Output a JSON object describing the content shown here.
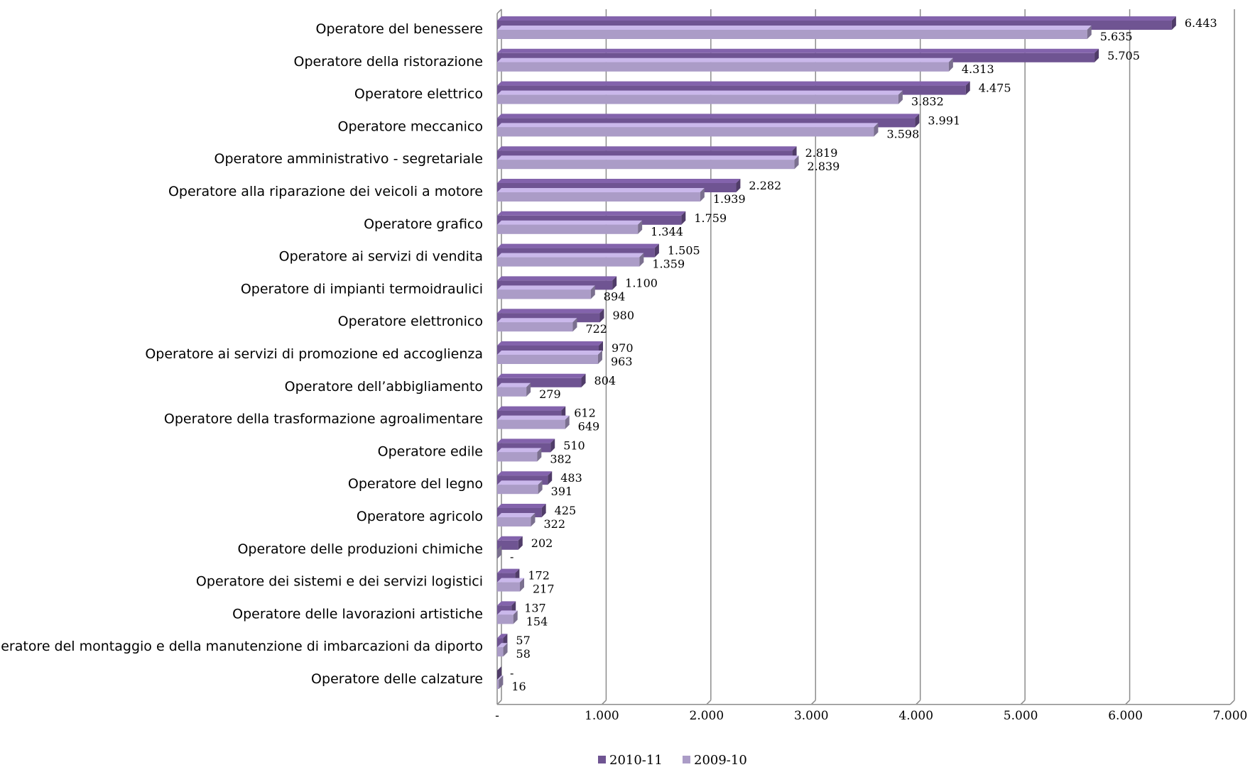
{
  "chart_data": {
    "type": "bar",
    "orientation": "horizontal",
    "categories": [
      "Operatore del benessere",
      "Operatore della ristorazione",
      "Operatore elettrico",
      "Operatore meccanico",
      "Operatore amministrativo - segretariale",
      "Operatore alla riparazione dei veicoli a motore",
      "Operatore grafico",
      "Operatore ai servizi di vendita",
      "Operatore di impianti termoidraulici",
      "Operatore elettronico",
      "Operatore ai servizi di promozione ed accoglienza",
      "Operatore dell’abbigliamento",
      "Operatore della trasformazione agroalimentare",
      "Operatore edile",
      "Operatore del legno",
      "Operatore agricolo",
      "Operatore delle produzioni chimiche",
      "Operatore dei sistemi e dei servizi logistici",
      "Operatore delle lavorazioni artistiche",
      "Operatore del montaggio e della manutenzione di imbarcazioni da diporto",
      "Operatore delle calzature"
    ],
    "series": [
      {
        "name": "2010-11",
        "color": "#6f5492",
        "values": [
          6443,
          5705,
          4475,
          3991,
          2819,
          2282,
          1759,
          1505,
          1100,
          980,
          970,
          804,
          612,
          510,
          483,
          425,
          202,
          172,
          137,
          57,
          0
        ],
        "labels": [
          "6.443",
          "5.705",
          "4.475",
          "3.991",
          "2.819",
          "2.282",
          "1.759",
          "1.505",
          "1.100",
          "980",
          "970",
          "804",
          "612",
          "510",
          "483",
          "425",
          "202",
          "172",
          "137",
          "57",
          "-"
        ]
      },
      {
        "name": "2009-10",
        "color": "#ab9cc7",
        "values": [
          5635,
          4313,
          3832,
          3598,
          2839,
          1939,
          1344,
          1359,
          894,
          722,
          963,
          279,
          649,
          382,
          391,
          322,
          0,
          217,
          154,
          58,
          16
        ],
        "labels": [
          "5.635",
          "4.313",
          "3.832",
          "3.598",
          "2.839",
          "1.939",
          "1.344",
          "1.359",
          "894",
          "722",
          "963",
          "279",
          "649",
          "382",
          "391",
          "322",
          "-",
          "217",
          "154",
          "58",
          "16"
        ]
      }
    ],
    "xlim": [
      0,
      7000
    ],
    "xticks": [
      "-",
      "1.000",
      "2.000",
      "3.000",
      "4.000",
      "5.000",
      "6.000",
      "7.000"
    ],
    "grid": true,
    "legend_position": "bottom",
    "title": "",
    "xlabel": "",
    "ylabel": ""
  }
}
